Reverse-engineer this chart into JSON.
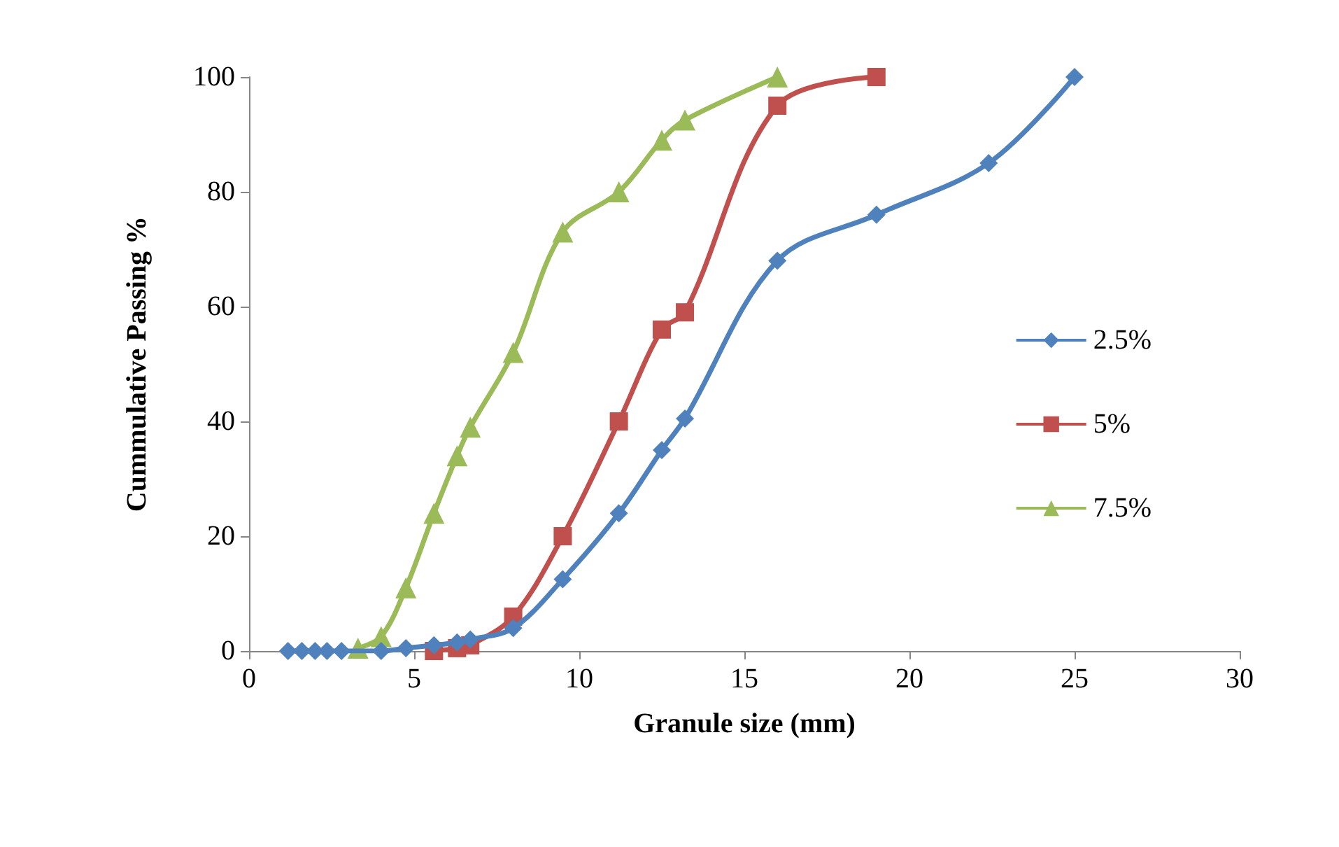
{
  "chart_data": {
    "type": "line",
    "xlabel": "Granule size (mm)",
    "ylabel": "Cummulative Passing %",
    "xlim": [
      0,
      30
    ],
    "xticks": [
      0,
      5,
      10,
      15,
      20,
      25,
      30
    ],
    "ylim": [
      0,
      100
    ],
    "yticks": [
      0,
      20,
      40,
      60,
      80,
      100
    ],
    "grid": false,
    "legend": "right",
    "line_style": "solid",
    "series": [
      {
        "name": "2.5%",
        "color": "#4f81bd",
        "marker": "diamond",
        "x": [
          1.18,
          1.6,
          2,
          2.36,
          2.8,
          4,
          4.75,
          5.6,
          6.3,
          6.7,
          8,
          9.5,
          11.2,
          12.5,
          13.2,
          16,
          19,
          22.4,
          25
        ],
        "values": [
          0,
          0,
          0,
          0,
          0,
          0,
          0.5,
          1,
          1.5,
          2,
          4,
          12.5,
          24,
          35,
          40.5,
          68,
          76,
          85,
          100
        ]
      },
      {
        "name": "5%",
        "color": "#c0504d",
        "marker": "square",
        "x": [
          5.6,
          6.3,
          6.7,
          8,
          9.5,
          11.2,
          12.5,
          13.2,
          16,
          19
        ],
        "values": [
          0,
          0.5,
          1,
          6,
          20,
          40,
          56,
          59,
          95,
          100
        ]
      },
      {
        "name": "7.5%",
        "color": "#9bbb59",
        "marker": "triangle",
        "x": [
          3.3,
          4,
          4.75,
          5.6,
          6.3,
          6.7,
          8,
          9.5,
          11.2,
          12.5,
          13.2,
          16
        ],
        "values": [
          0.5,
          2.5,
          11,
          24,
          34,
          39,
          52,
          73,
          80,
          89,
          92.5,
          100
        ]
      }
    ]
  }
}
